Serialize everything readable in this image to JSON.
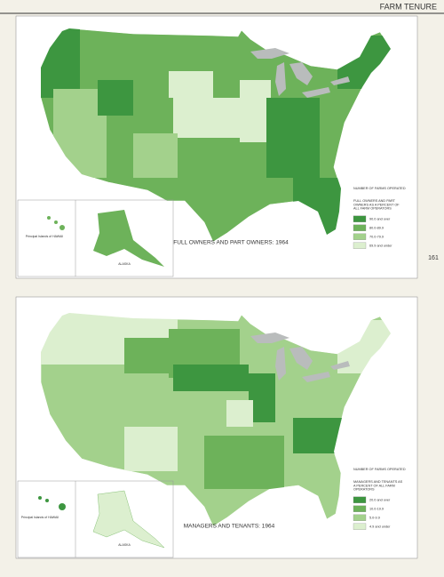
{
  "header": {
    "section": "FARM TENURE",
    "page_number": "161"
  },
  "maps": [
    {
      "title": "FULL OWNERS AND PART OWNERS: 1964",
      "legend": {
        "title": "NUMBER OF FARMS OPERATED",
        "subtitle": "FULL OWNERS AND PART OWNERS AS A PERCENT OF ALL FARM OPERATORS",
        "items": [
          {
            "label": "90.0 and over",
            "color": "#3d9640"
          },
          {
            "label": "80.0-89.9",
            "color": "#6db25a"
          },
          {
            "label": "70.0-79.9",
            "color": "#a3d18c"
          },
          {
            "label": "69.9 and under",
            "color": "#dcefcf"
          }
        ]
      },
      "insets": {
        "alaska": "ALASKA",
        "hawaii": "Principal Islands of HAWAII"
      }
    },
    {
      "title": "MANAGERS AND TENANTS: 1964",
      "legend": {
        "title": "NUMBER OF FARMS OPERATED",
        "subtitle": "MANAGERS AND TENANTS AS A PERCENT OF ALL FARM OPERATORS",
        "items": [
          {
            "label": "20.0 and over",
            "color": "#3d9640"
          },
          {
            "label": "10.0-19.9",
            "color": "#6db25a"
          },
          {
            "label": "5.0-9.9",
            "color": "#a3d18c"
          },
          {
            "label": "4.9 and under",
            "color": "#dcefcf"
          }
        ]
      },
      "insets": {
        "alaska": "ALASKA",
        "hawaii": "Principal Islands of HAWAII"
      }
    }
  ]
}
